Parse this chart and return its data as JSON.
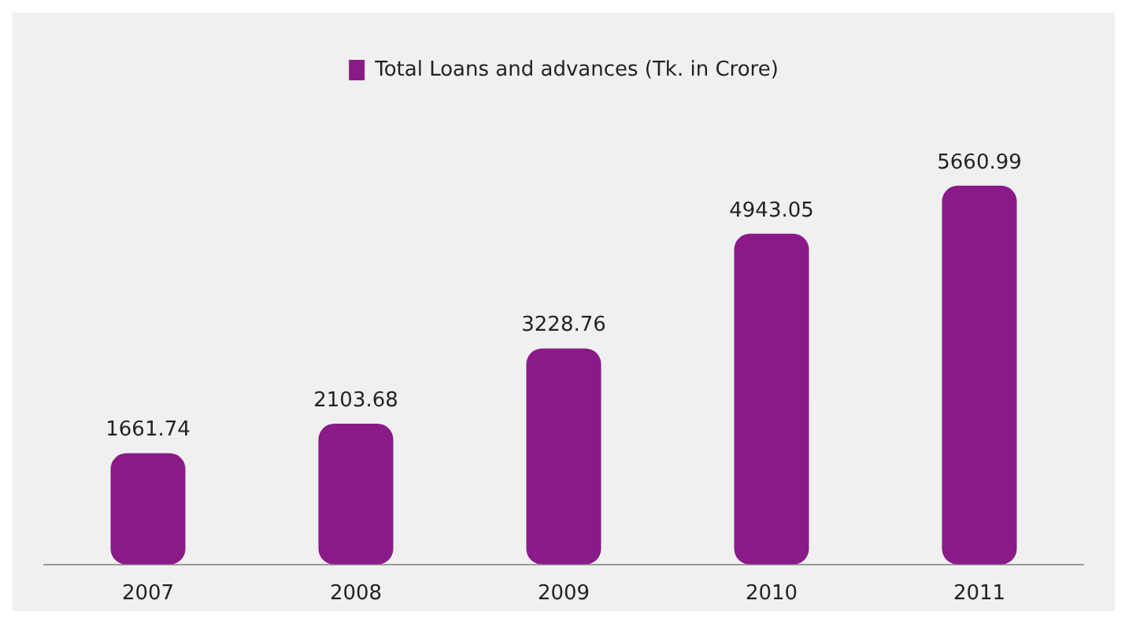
{
  "chart_data": {
    "type": "bar",
    "categories": [
      "2007",
      "2008",
      "2009",
      "2010",
      "2011"
    ],
    "series": [
      {
        "name": "Total Loans and advances (Tk. in Crore)",
        "color": "#8b1a89",
        "values": [
          1661.74,
          2103.68,
          3228.76,
          4943.05,
          5660.99
        ]
      }
    ],
    "data_labels": true,
    "legend": "top",
    "grid": false,
    "tick_labels": "x"
  }
}
